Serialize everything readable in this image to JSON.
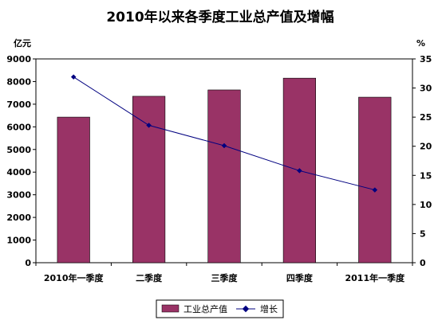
{
  "chart_data": {
    "type": "bar",
    "title": "2010年以来各季度工业总产值及增幅",
    "categories": [
      "2010年一季度",
      "二季度",
      "三季度",
      "四季度",
      "2011年一季度"
    ],
    "series": [
      {
        "name": "工业总产值",
        "type": "bar",
        "axis": "left",
        "color": "#993366",
        "values": [
          6430,
          7350,
          7630,
          8150,
          7310
        ]
      },
      {
        "name": "增长",
        "type": "line",
        "axis": "right",
        "color": "#000080",
        "values": [
          31.9,
          23.6,
          20.1,
          15.8,
          12.5
        ]
      }
    ],
    "y_left": {
      "unit": "亿元",
      "ylim": [
        0,
        9000
      ],
      "ticks": [
        0,
        1000,
        2000,
        3000,
        4000,
        5000,
        6000,
        7000,
        8000,
        9000
      ]
    },
    "y_right": {
      "unit": "%",
      "ylim": [
        0,
        35
      ],
      "ticks": [
        0,
        5,
        10,
        15,
        20,
        25,
        30,
        35
      ]
    },
    "grid": false,
    "legend": "bottom"
  }
}
